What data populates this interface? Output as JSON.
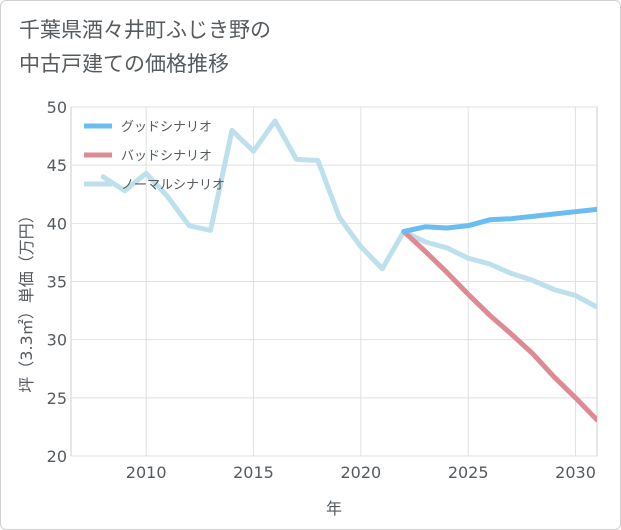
{
  "chart_title": {
    "line1": "千葉県酒々井町ふじき野の",
    "line2": "中古戸建ての価格推移"
  },
  "chart_data": {
    "type": "line",
    "xlabel": "年",
    "ylabel": "坪（3.3㎡）単価（万円）",
    "xlim": [
      2006.5,
      2031
    ],
    "ylim": [
      20,
      50
    ],
    "xticks": [
      2010,
      2015,
      2020,
      2025,
      2030
    ],
    "yticks": [
      20,
      25,
      30,
      35,
      40,
      45,
      50
    ],
    "grid": true,
    "legend_position": "top-left",
    "series": [
      {
        "name": "グッドシナリオ",
        "color": "#6bbcf0",
        "x": [
          2022,
          2023,
          2024,
          2025,
          2026,
          2027,
          2028,
          2029,
          2030,
          2031
        ],
        "y": [
          39.3,
          39.7,
          39.6,
          39.8,
          40.3,
          40.4,
          40.6,
          40.8,
          41.0,
          41.2
        ]
      },
      {
        "name": "バッドシナリオ",
        "color": "#dc8a93",
        "x": [
          2022,
          2023,
          2024,
          2025,
          2026,
          2027,
          2028,
          2029,
          2030,
          2031
        ],
        "y": [
          39.3,
          37.6,
          35.8,
          33.9,
          32.1,
          30.5,
          28.8,
          26.8,
          25.0,
          23.1
        ]
      },
      {
        "name": "ノーマルシナリオ",
        "color": "#bde0ec",
        "x": [
          2008,
          2009,
          2010,
          2011,
          2012,
          2013,
          2014,
          2015,
          2016,
          2017,
          2018,
          2019,
          2020,
          2021,
          2022,
          2023,
          2024,
          2025,
          2026,
          2027,
          2028,
          2029,
          2030,
          2031
        ],
        "y": [
          44.0,
          42.8,
          44.3,
          42.3,
          39.8,
          39.4,
          48.0,
          46.2,
          48.8,
          45.5,
          45.4,
          40.5,
          38.0,
          36.1,
          39.3,
          38.4,
          37.9,
          37.0,
          36.5,
          35.7,
          35.1,
          34.3,
          33.8,
          32.8
        ]
      }
    ]
  }
}
